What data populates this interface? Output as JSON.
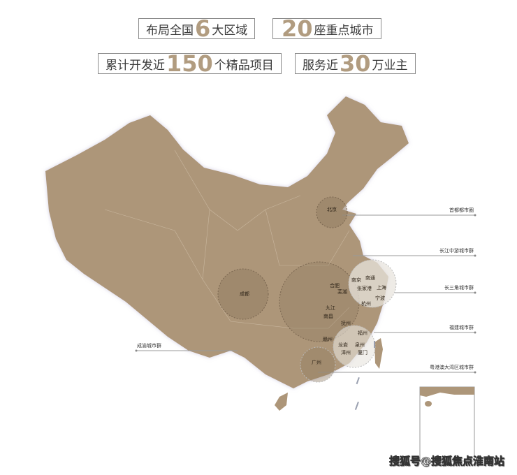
{
  "stats": [
    {
      "pre": "布局全国",
      "num": "6",
      "post": "大区域"
    },
    {
      "pre": "",
      "num": "20",
      "post": "座重点城市"
    },
    {
      "pre": "累计开发近",
      "num": "150",
      "post": "个精品项目"
    },
    {
      "pre": "服务近",
      "num": "30",
      "post": "万业主"
    }
  ],
  "clusters": [
    {
      "name": "首都都市圈"
    },
    {
      "name": "长江中游城市群"
    },
    {
      "name": "长三角城市群"
    },
    {
      "name": "福建城市群"
    },
    {
      "name": "粤港澳大湾区城市群"
    },
    {
      "name": "成渝城市群"
    }
  ],
  "cities": [
    "北京",
    "成都",
    "南京",
    "南通",
    "合肥",
    "芜湖",
    "张家港",
    "上海",
    "宁波",
    "杭州",
    "九江",
    "南昌",
    "抚州",
    "福州",
    "赣州",
    "龙岩",
    "泉州",
    "漳州",
    "厦门",
    "广州"
  ],
  "colors": {
    "land": "#ad9679",
    "accent_number": "#b19c80",
    "circle_dark": "#8f7a60",
    "circle_light": "#e8e4de"
  },
  "watermark": "搜狐号@搜狐焦点淮南站"
}
